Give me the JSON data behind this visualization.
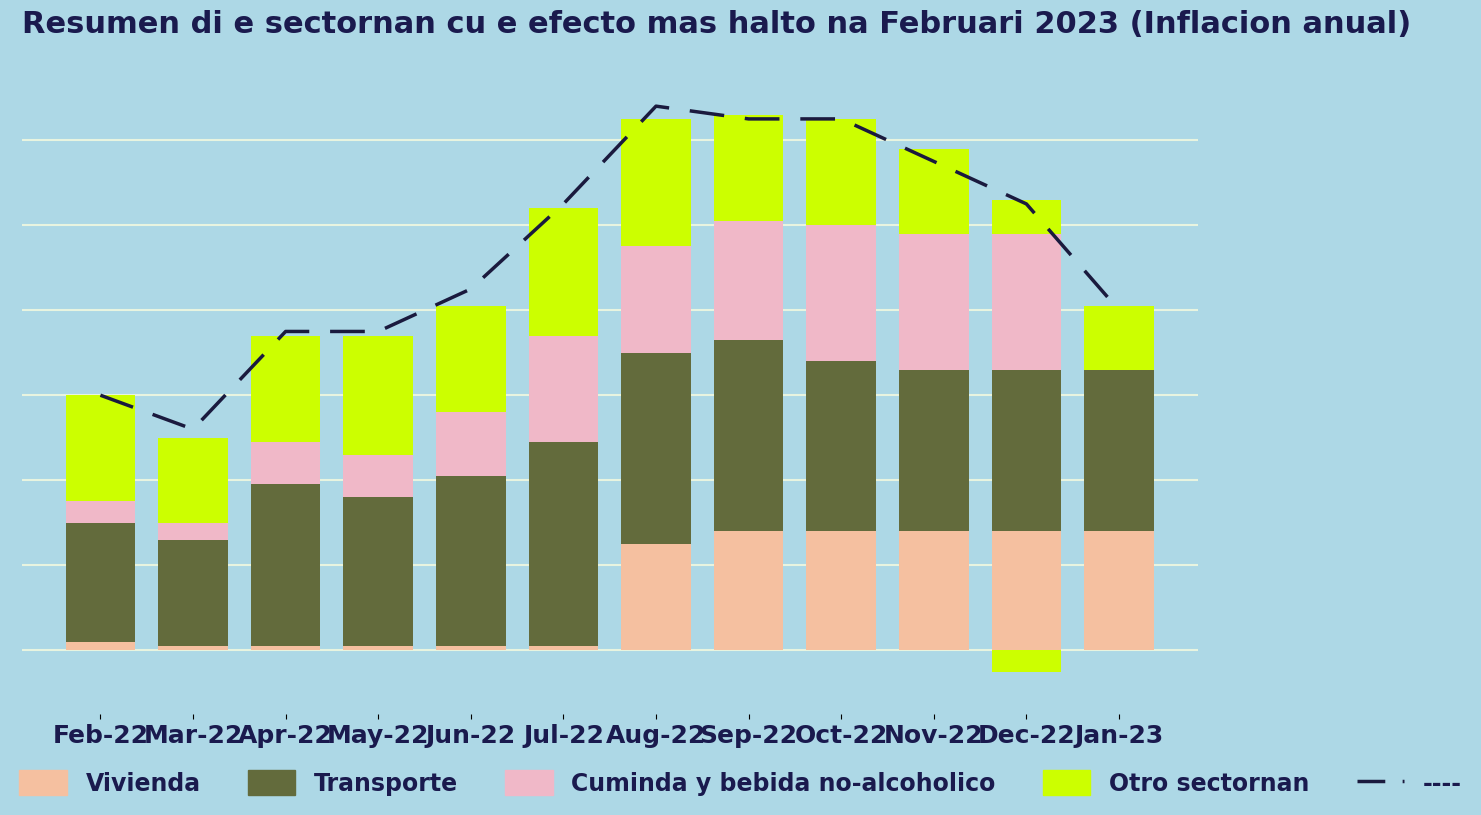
{
  "title": "Resumen di e sectornan cu e efecto mas halto na Februari 2023 (Inflacion anual)",
  "months": [
    "Feb-22",
    "Mar-22",
    "Apr-22",
    "May-22",
    "Jun-22",
    "Jul-22",
    "Aug-22",
    "Sep-22",
    "Oct-22",
    "Nov-22",
    "Dec-22",
    "Jan-23"
  ],
  "vivienda": [
    0.2,
    0.1,
    0.1,
    0.1,
    0.1,
    0.1,
    2.5,
    2.8,
    2.8,
    2.8,
    2.8,
    2.8
  ],
  "transporte": [
    2.8,
    2.5,
    3.8,
    3.5,
    4.0,
    4.8,
    4.5,
    4.5,
    4.0,
    3.8,
    3.8,
    3.8
  ],
  "cuminda": [
    0.5,
    0.4,
    1.0,
    1.0,
    1.5,
    2.5,
    2.5,
    2.8,
    3.2,
    3.2,
    3.2,
    0.0
  ],
  "otro": [
    2.5,
    2.0,
    2.5,
    2.8,
    2.5,
    3.0,
    3.0,
    2.5,
    2.5,
    2.0,
    0.8,
    1.5
  ],
  "otro_neg": [
    0.0,
    0.0,
    0.0,
    0.0,
    0.0,
    0.0,
    0.0,
    0.0,
    0.0,
    0.0,
    -0.5,
    0.0
  ],
  "dashed_line": [
    6.0,
    5.2,
    7.5,
    7.5,
    8.5,
    10.5,
    12.8,
    12.5,
    12.5,
    11.5,
    10.5,
    8.0
  ],
  "color_vivienda": "#f5c0a0",
  "color_transporte": "#636b3c",
  "color_cuminda": "#f0b8c8",
  "color_otro": "#ccff00",
  "color_dashed": "#1a1a3e",
  "background_color": "#add8e6",
  "title_color": "#1a1a4e",
  "label_color": "#1a1a4e",
  "legend_labels": [
    "Vivienda",
    "Transporte",
    "Cuminda y bebida no-alcoholico",
    "Otro sectornan"
  ],
  "grid_color": "#e8f4e0",
  "title_fontsize": 22,
  "tick_fontsize": 18,
  "legend_fontsize": 17
}
